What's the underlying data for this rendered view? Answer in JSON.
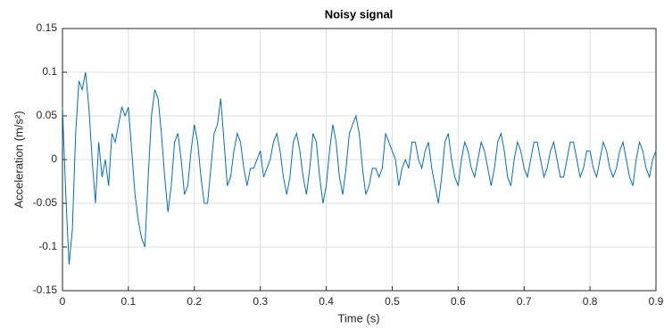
{
  "chart_data": {
    "type": "line",
    "title": "Noisy signal",
    "xlabel": "Time (s)",
    "ylabel": "Acceleration (m/s²)",
    "color": "#0072bd",
    "grid": true,
    "xlim": [
      0,
      0.9
    ],
    "xticks": [
      0,
      0.1,
      0.2,
      0.3,
      0.4,
      0.5,
      0.6,
      0.7,
      0.8,
      0.9
    ],
    "ylim": [
      -0.15,
      0.15
    ],
    "yticks": [
      -0.15,
      -0.1,
      -0.05,
      0,
      0.05,
      0.1,
      0.15
    ],
    "x": [
      0,
      0.005,
      0.01,
      0.015,
      0.02,
      0.025,
      0.03,
      0.035,
      0.04,
      0.045,
      0.05,
      0.055,
      0.06,
      0.065,
      0.07,
      0.075,
      0.08,
      0.085,
      0.09,
      0.095,
      0.1,
      0.105,
      0.11,
      0.115,
      0.12,
      0.125,
      0.13,
      0.135,
      0.14,
      0.145,
      0.15,
      0.155,
      0.16,
      0.165,
      0.17,
      0.175,
      0.18,
      0.185,
      0.19,
      0.195,
      0.2,
      0.205,
      0.21,
      0.215,
      0.22,
      0.225,
      0.23,
      0.235,
      0.24,
      0.245,
      0.25,
      0.255,
      0.26,
      0.265,
      0.27,
      0.275,
      0.28,
      0.285,
      0.29,
      0.295,
      0.3,
      0.305,
      0.31,
      0.315,
      0.32,
      0.325,
      0.33,
      0.335,
      0.34,
      0.345,
      0.35,
      0.355,
      0.36,
      0.365,
      0.37,
      0.375,
      0.38,
      0.385,
      0.39,
      0.395,
      0.4,
      0.405,
      0.41,
      0.415,
      0.42,
      0.425,
      0.43,
      0.435,
      0.44,
      0.445,
      0.45,
      0.455,
      0.46,
      0.465,
      0.47,
      0.475,
      0.48,
      0.485,
      0.49,
      0.495,
      0.5,
      0.505,
      0.51,
      0.515,
      0.52,
      0.525,
      0.53,
      0.535,
      0.54,
      0.545,
      0.55,
      0.555,
      0.56,
      0.565,
      0.57,
      0.575,
      0.58,
      0.585,
      0.59,
      0.595,
      0.6,
      0.605,
      0.61,
      0.615,
      0.62,
      0.625,
      0.63,
      0.635,
      0.64,
      0.645,
      0.65,
      0.655,
      0.66,
      0.665,
      0.67,
      0.675,
      0.68,
      0.685,
      0.69,
      0.695,
      0.7,
      0.705,
      0.71,
      0.715,
      0.72,
      0.725,
      0.73,
      0.735,
      0.74,
      0.745,
      0.75,
      0.755,
      0.76,
      0.765,
      0.77,
      0.775,
      0.78,
      0.785,
      0.79,
      0.795,
      0.8,
      0.805,
      0.81,
      0.815,
      0.82,
      0.825,
      0.83,
      0.835,
      0.84,
      0.845,
      0.85,
      0.855,
      0.86,
      0.865,
      0.87,
      0.875,
      0.88,
      0.885,
      0.89,
      0.895,
      0.9
    ],
    "values": [
      0.06,
      -0.04,
      -0.12,
      -0.08,
      0.03,
      0.09,
      0.08,
      0.1,
      0.06,
      0,
      -0.05,
      0.02,
      -0.02,
      0,
      -0.03,
      0.03,
      0.02,
      0.04,
      0.06,
      0.05,
      0.06,
      0.01,
      -0.04,
      -0.07,
      -0.09,
      -0.1,
      -0.02,
      0.05,
      0.08,
      0.07,
      0.03,
      -0.02,
      -0.06,
      -0.03,
      0.02,
      0.03,
      0,
      -0.04,
      -0.03,
      0.01,
      0.04,
      0.02,
      -0.02,
      -0.05,
      -0.05,
      -0.01,
      0.03,
      0.04,
      0.07,
      0.02,
      -0.03,
      -0.02,
      0.01,
      0.03,
      0.02,
      -0.01,
      -0.03,
      -0.01,
      -0.01,
      0,
      0.01,
      -0.02,
      -0.01,
      0,
      0.02,
      0.03,
      0.01,
      -0.02,
      -0.04,
      -0.02,
      0.02,
      0.03,
      0.01,
      -0.02,
      -0.04,
      -0.01,
      0.03,
      0.02,
      -0.02,
      -0.05,
      -0.03,
      0.01,
      0.04,
      0.02,
      -0.02,
      -0.04,
      -0.01,
      0.03,
      0.04,
      0.05,
      0.03,
      -0.01,
      -0.04,
      -0.03,
      -0.01,
      -0.01,
      -0.02,
      -0.01,
      0.03,
      0.02,
      0.01,
      0,
      -0.03,
      -0.01,
      0,
      -0.01,
      0.02,
      0.02,
      0,
      -0.01,
      0.01,
      0.02,
      -0.01,
      -0.03,
      -0.05,
      -0.02,
      0.02,
      0.03,
      0,
      -0.02,
      -0.03,
      0,
      0.02,
      0.01,
      -0.01,
      -0.02,
      0,
      0.02,
      0.01,
      -0.01,
      -0.03,
      -0.01,
      0.02,
      0.03,
      0.01,
      -0.02,
      -0.03,
      0,
      0.02,
      0.01,
      -0.01,
      -0.02,
      0,
      0.02,
      0.02,
      0,
      -0.02,
      -0.01,
      0.01,
      0.02,
      0,
      -0.02,
      -0.02,
      0,
      0.02,
      0.02,
      0,
      -0.02,
      -0.01,
      0.01,
      0.01,
      -0.01,
      -0.02,
      0,
      0.02,
      0.01,
      -0.01,
      -0.02,
      -0.01,
      0.01,
      0.02,
      0,
      -0.02,
      -0.03,
      0,
      0.02,
      0.01,
      -0.01,
      -0.02,
      0,
      0.01
    ]
  }
}
